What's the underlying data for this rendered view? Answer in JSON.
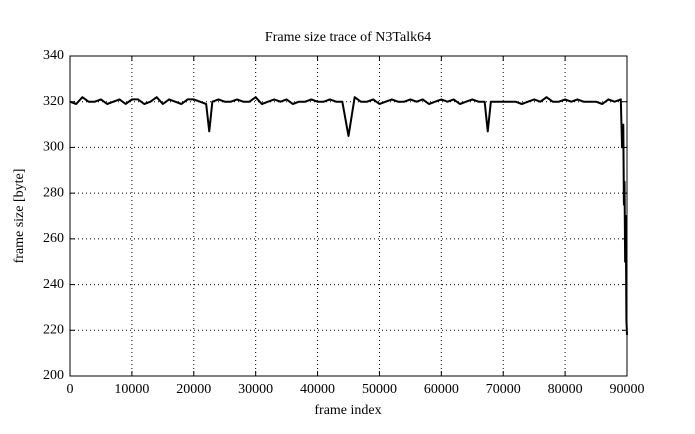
{
  "chart_data": {
    "type": "line",
    "title": "Frame size trace of N3Talk64",
    "x_label": "frame index",
    "y_label": "frame size [byte]",
    "x": [
      0,
      1000,
      2000,
      3000,
      4000,
      5000,
      6000,
      7000,
      8000,
      9000,
      10000,
      11000,
      12000,
      13000,
      14000,
      15000,
      16000,
      17000,
      18000,
      19000,
      20000,
      21000,
      22000,
      22500,
      23000,
      24000,
      25000,
      26000,
      27000,
      28000,
      29000,
      30000,
      31000,
      32000,
      33000,
      34000,
      35000,
      36000,
      37000,
      38000,
      39000,
      40000,
      41000,
      42000,
      43000,
      44000,
      45000,
      46000,
      47000,
      48000,
      49000,
      50000,
      51000,
      52000,
      53000,
      54000,
      55000,
      56000,
      57000,
      58000,
      59000,
      60000,
      61000,
      62000,
      63000,
      64000,
      65000,
      66000,
      67000,
      67500,
      68000,
      69000,
      70000,
      71000,
      72000,
      73000,
      74000,
      75000,
      76000,
      77000,
      78000,
      79000,
      80000,
      81000,
      82000,
      83000,
      84000,
      85000,
      86000,
      87000,
      88000,
      89000,
      89200,
      89400,
      89500,
      89600,
      89700,
      89800,
      89900,
      90000
    ],
    "series": [
      {
        "name": "frame size",
        "color": "#000000",
        "values": [
          320,
          319,
          322,
          320,
          320,
          321,
          319,
          320,
          321,
          319,
          321,
          321,
          319,
          320,
          322,
          319,
          321,
          320,
          319,
          321,
          321,
          320,
          319,
          307,
          320,
          321,
          320,
          320,
          321,
          320,
          320,
          322,
          319,
          320,
          321,
          320,
          321,
          319,
          320,
          320,
          321,
          320,
          320,
          321,
          320,
          320,
          305,
          322,
          320,
          320,
          321,
          319,
          320,
          321,
          320,
          320,
          321,
          320,
          321,
          319,
          320,
          321,
          320,
          321,
          319,
          320,
          321,
          320,
          320,
          307,
          320,
          320,
          320,
          320,
          320,
          319,
          320,
          321,
          320,
          322,
          320,
          320,
          321,
          320,
          321,
          320,
          320,
          320,
          319,
          321,
          320,
          321,
          300,
          310,
          275,
          285,
          250,
          270,
          225,
          218
        ]
      }
    ],
    "xlim": [
      0,
      90000
    ],
    "ylim": [
      200,
      340
    ],
    "xticks": [
      0,
      10000,
      20000,
      30000,
      40000,
      50000,
      60000,
      70000,
      80000,
      90000
    ],
    "yticks": [
      200,
      220,
      240,
      260,
      280,
      300,
      320,
      340
    ],
    "grid": true
  }
}
